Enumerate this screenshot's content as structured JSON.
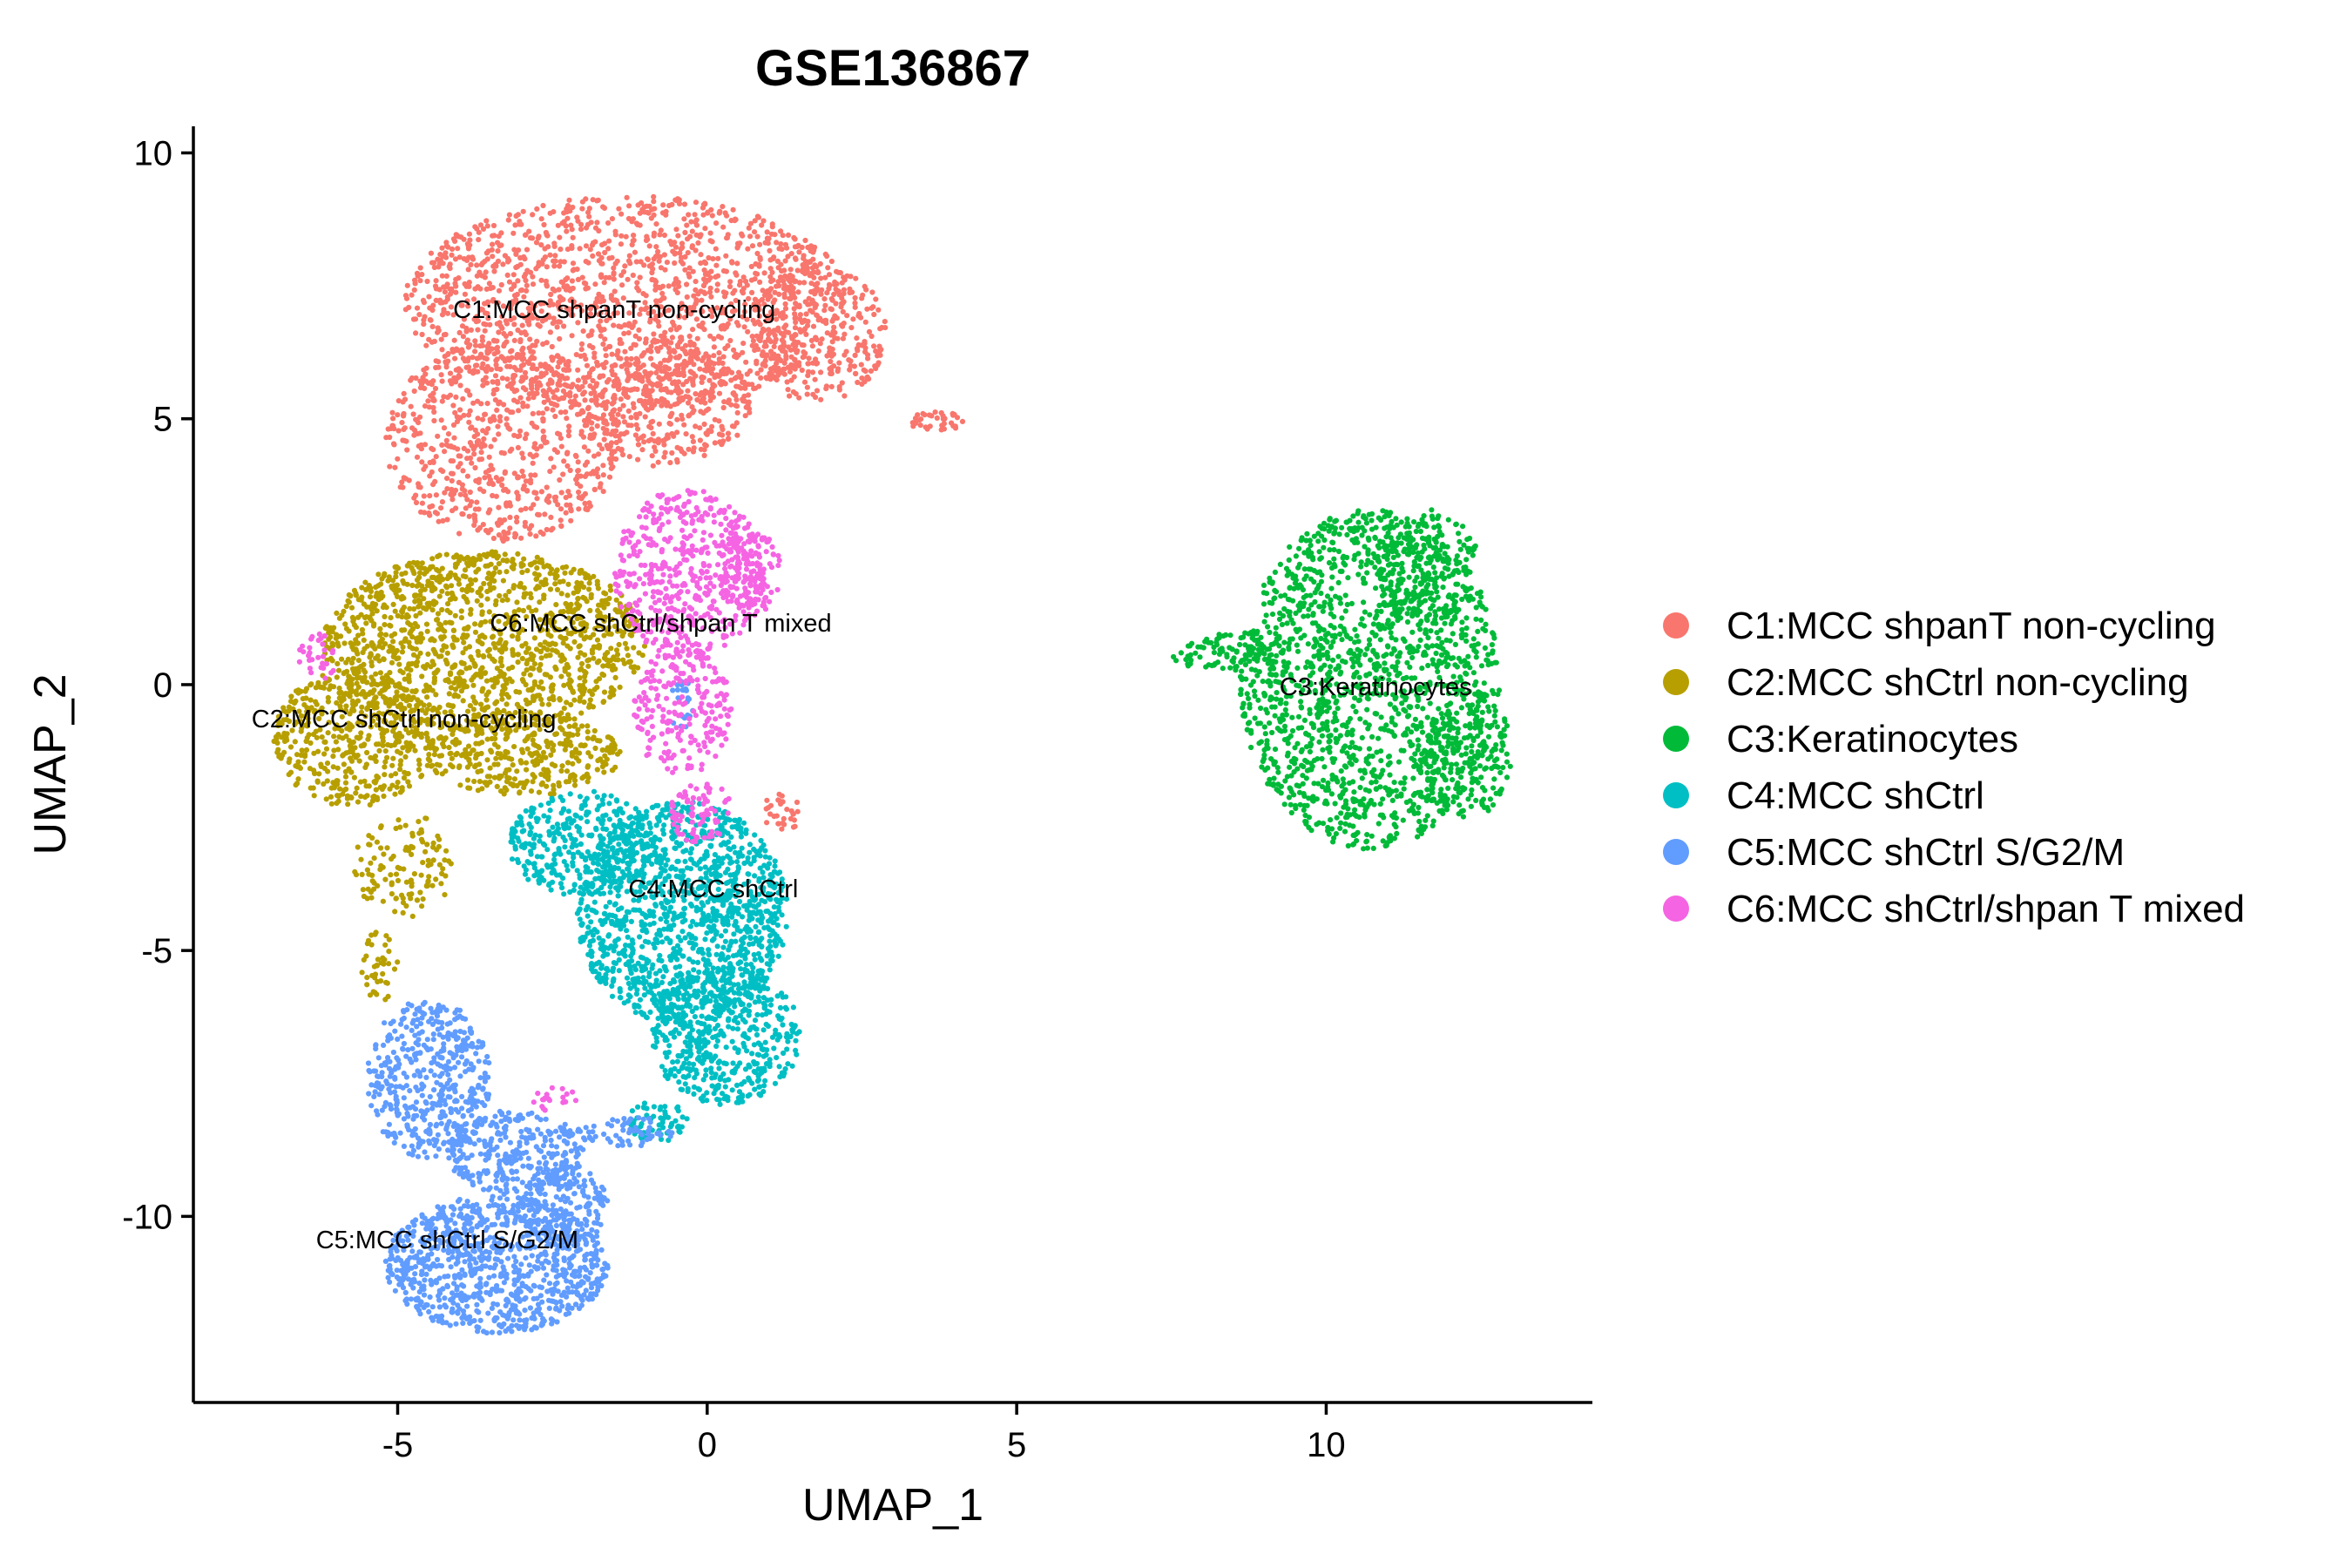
{
  "chart_data": {
    "type": "scatter",
    "title": "GSE136867",
    "xlabel": "UMAP_1",
    "ylabel": "UMAP_2",
    "xlim": [
      -8.3,
      14.3
    ],
    "ylim": [
      -13.5,
      10.5
    ],
    "x_ticks": [
      -5,
      0,
      5,
      10
    ],
    "x_tick_labels": [
      "-5",
      "0",
      "5",
      "10"
    ],
    "y_ticks": [
      -10,
      -5,
      0,
      5,
      10
    ],
    "y_tick_labels": [
      "-10",
      "-5",
      "0",
      "5",
      "10"
    ],
    "grid": false,
    "legend_position": "right",
    "series": [
      {
        "name": "C1:MCC shpanT non-cycling",
        "color": "#F8766D",
        "label_at": [
          -1.5,
          6.9
        ],
        "label": "C1:MCC shpanT non-cycling",
        "regions": [
          {
            "cx": -1.3,
            "cy": 7.2,
            "rx": 3.6,
            "ry": 2.0,
            "n": 1500
          },
          {
            "cx": -3.3,
            "cy": 4.6,
            "rx": 1.9,
            "ry": 1.9,
            "n": 700
          },
          {
            "cx": -0.7,
            "cy": 5.3,
            "rx": 1.4,
            "ry": 1.2,
            "n": 400
          },
          {
            "cx": 1.8,
            "cy": 6.6,
            "rx": 1.1,
            "ry": 1.3,
            "n": 300
          },
          {
            "cx": 3.7,
            "cy": 4.95,
            "rx": 0.45,
            "ry": 0.18,
            "n": 35
          },
          {
            "cx": 1.2,
            "cy": -2.4,
            "rx": 0.35,
            "ry": 0.35,
            "n": 30
          }
        ]
      },
      {
        "name": "C2:MCC shCtrl non-cycling",
        "color": "#B79F00",
        "label_at": [
          -4.9,
          -0.8
        ],
        "label": "C2:MCC shCtrl non-cycling",
        "regions": [
          {
            "cx": -3.6,
            "cy": 0.8,
            "rx": 2.6,
            "ry": 1.7,
            "n": 1300
          },
          {
            "cx": -5.7,
            "cy": -1.0,
            "rx": 1.3,
            "ry": 1.3,
            "n": 500
          },
          {
            "cx": -3.0,
            "cy": -1.3,
            "rx": 1.6,
            "ry": 0.8,
            "n": 350
          },
          {
            "cx": -4.9,
            "cy": -3.4,
            "rx": 0.8,
            "ry": 1.0,
            "n": 120
          },
          {
            "cx": -5.3,
            "cy": -5.2,
            "rx": 0.3,
            "ry": 0.8,
            "n": 40
          }
        ]
      },
      {
        "name": "C3:Keratinocytes",
        "color": "#00BA38",
        "label_at": [
          10.8,
          -0.2
        ],
        "label": "C3:Keratinocytes",
        "regions": [
          {
            "cx": 10.7,
            "cy": 0.1,
            "rx": 2.1,
            "ry": 3.2,
            "n": 1600
          },
          {
            "cx": 11.6,
            "cy": 2.2,
            "rx": 0.9,
            "ry": 1.1,
            "n": 200
          },
          {
            "cx": 8.3,
            "cy": 0.6,
            "rx": 0.8,
            "ry": 0.35,
            "n": 80
          },
          {
            "cx": 12.3,
            "cy": -1.3,
            "rx": 0.7,
            "ry": 1.2,
            "n": 200
          }
        ]
      },
      {
        "name": "C4:MCC shCtrl",
        "color": "#00BFC4",
        "label_at": [
          0.1,
          -4.0
        ],
        "label": "C4:MCC shCtrl",
        "regions": [
          {
            "cx": -0.4,
            "cy": -4.3,
            "rx": 1.7,
            "ry": 2.1,
            "n": 1300
          },
          {
            "cx": 0.3,
            "cy": -6.6,
            "rx": 1.2,
            "ry": 1.3,
            "n": 500
          },
          {
            "cx": -2.0,
            "cy": -3.0,
            "rx": 1.2,
            "ry": 1.0,
            "n": 350
          },
          {
            "cx": -0.8,
            "cy": -8.2,
            "rx": 0.5,
            "ry": 0.4,
            "n": 60
          }
        ]
      },
      {
        "name": "C5:MCC shCtrl S/G2/M",
        "color": "#619CFF",
        "label_at": [
          -4.2,
          -10.6
        ],
        "label": "C5:MCC shCtrl S/G2/M",
        "regions": [
          {
            "cx": -3.4,
            "cy": -10.9,
            "rx": 1.8,
            "ry": 1.3,
            "n": 900
          },
          {
            "cx": -4.5,
            "cy": -7.4,
            "rx": 1.0,
            "ry": 1.5,
            "n": 450
          },
          {
            "cx": -3.1,
            "cy": -8.8,
            "rx": 1.1,
            "ry": 0.8,
            "n": 300
          },
          {
            "cx": -2.3,
            "cy": -9.8,
            "rx": 0.7,
            "ry": 0.8,
            "n": 200
          },
          {
            "cx": -1.3,
            "cy": -8.4,
            "rx": 0.8,
            "ry": 0.3,
            "n": 60
          },
          {
            "cx": -0.4,
            "cy": -0.4,
            "rx": 0.2,
            "ry": 0.5,
            "n": 25
          }
        ]
      },
      {
        "name": "C6:MCC shCtrl/shpan T mixed",
        "color": "#F564E3",
        "label_at": [
          -0.75,
          1.0
        ],
        "label": "C6:MCC shCtrl/shpan T mixed",
        "regions": [
          {
            "cx": -0.3,
            "cy": 2.1,
            "rx": 1.2,
            "ry": 1.6,
            "n": 500
          },
          {
            "cx": 0.7,
            "cy": 2.1,
            "rx": 0.5,
            "ry": 0.8,
            "n": 120
          },
          {
            "cx": -0.4,
            "cy": -0.5,
            "rx": 0.8,
            "ry": 1.2,
            "n": 220
          },
          {
            "cx": -0.1,
            "cy": -2.4,
            "rx": 0.5,
            "ry": 0.6,
            "n": 80
          },
          {
            "cx": -6.3,
            "cy": 0.5,
            "rx": 0.3,
            "ry": 0.5,
            "n": 30
          },
          {
            "cx": -2.5,
            "cy": -7.8,
            "rx": 0.4,
            "ry": 0.3,
            "n": 20
          }
        ]
      }
    ]
  }
}
